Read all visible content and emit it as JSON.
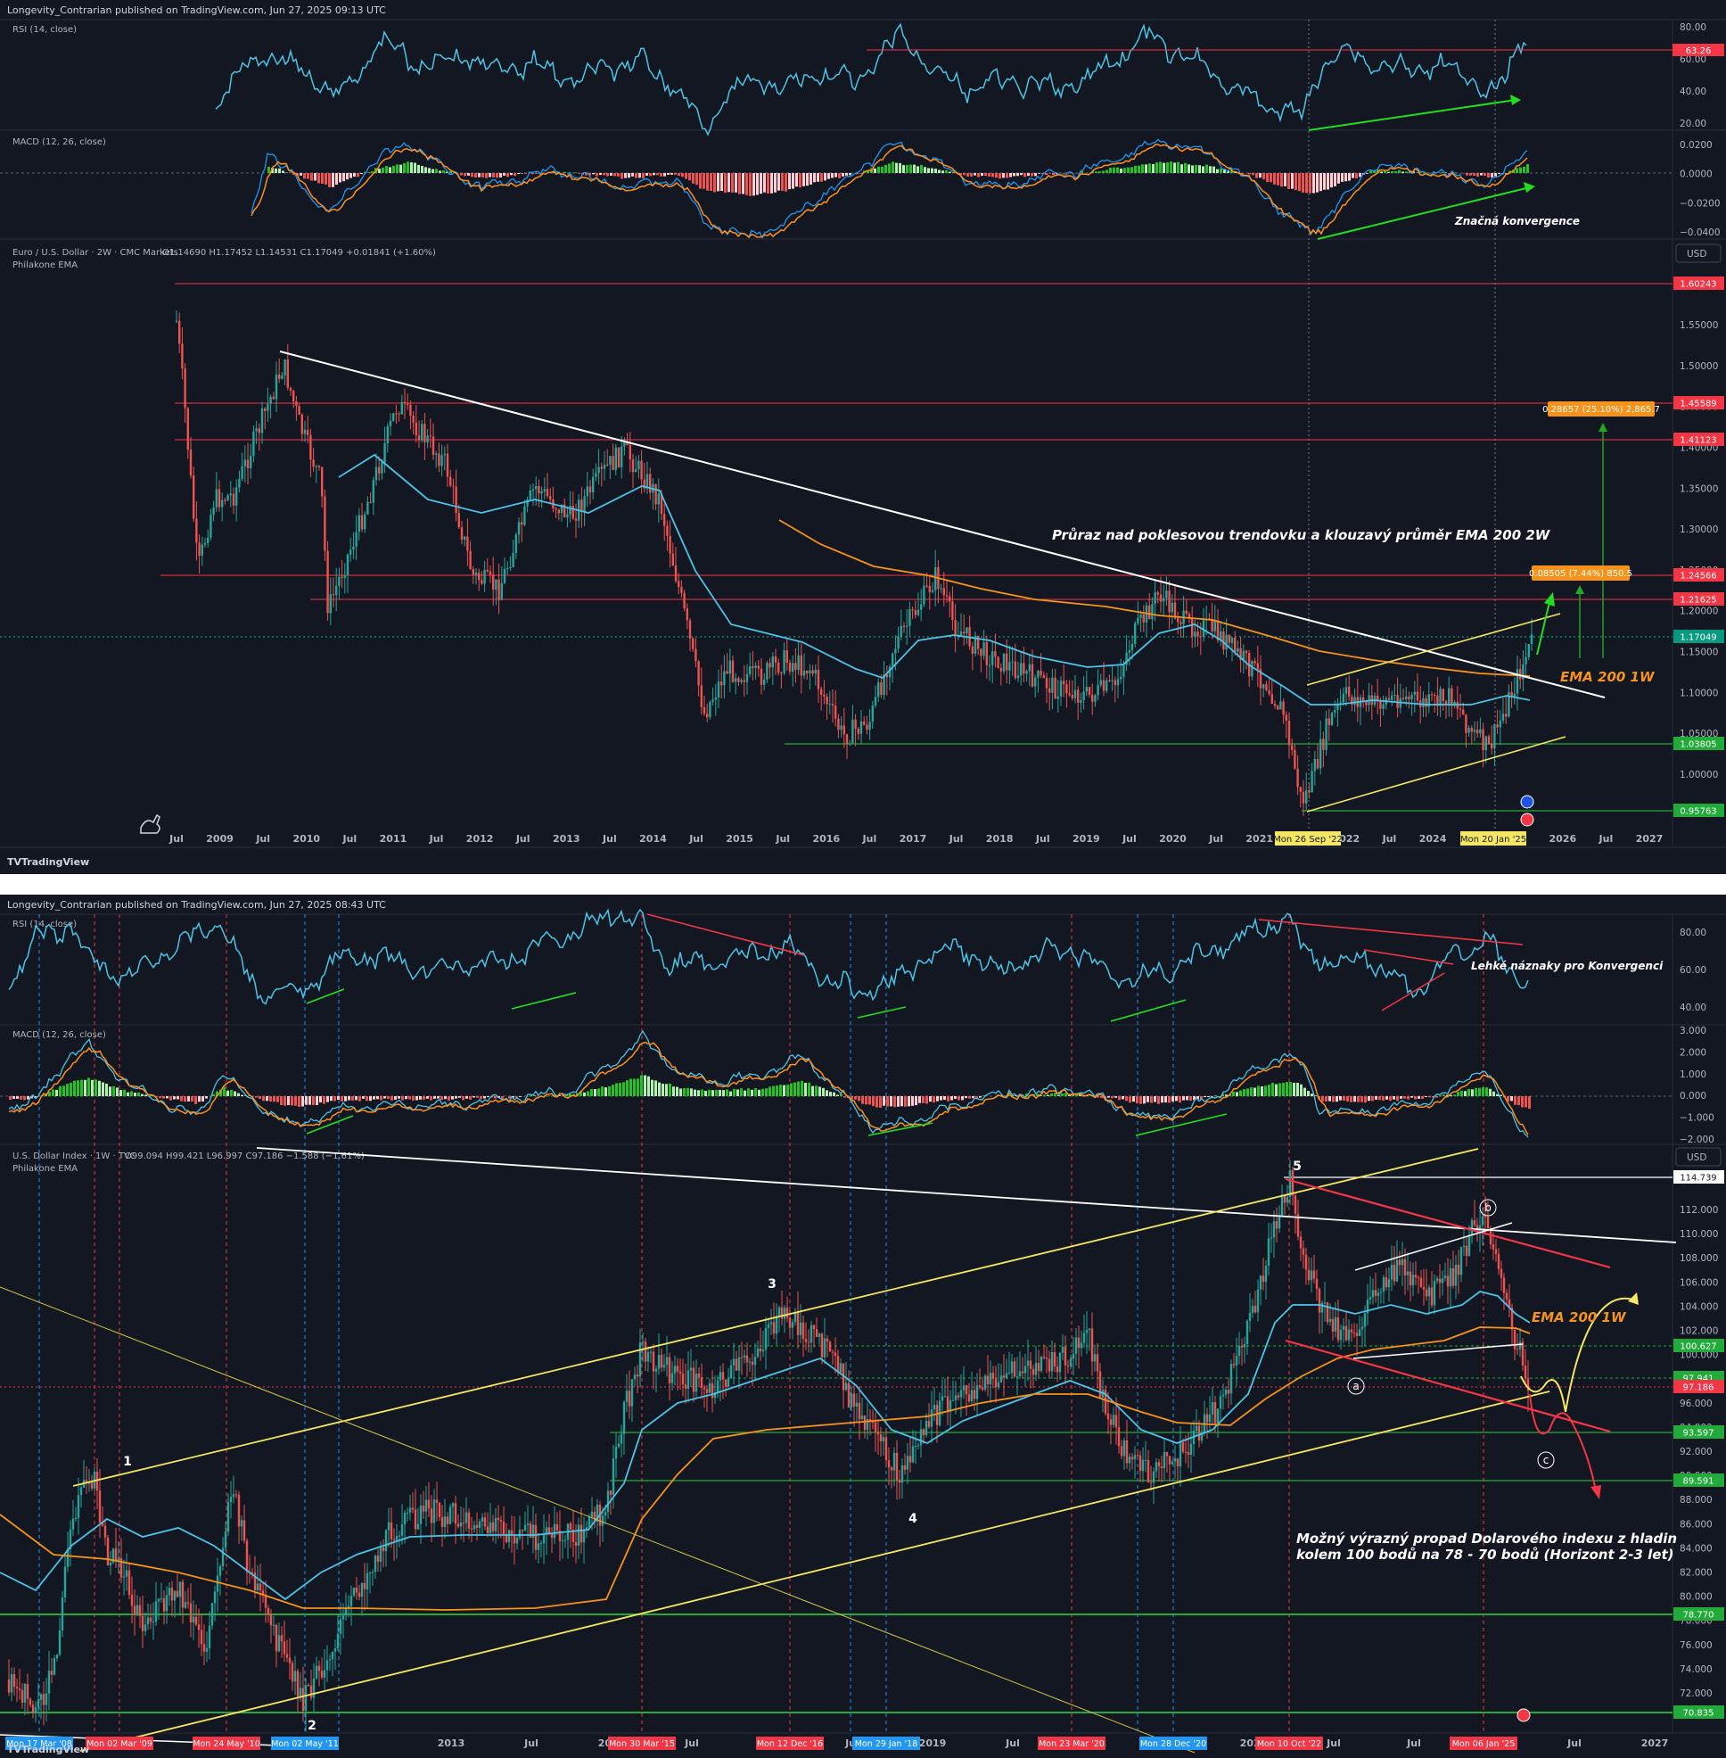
{
  "chart1": {
    "header": "Longevity_Contrarian published on TradingView.com, Jun 27, 2025 09:13 UTC",
    "rsi_title": "RSI (14, close)",
    "rsi_axis": [
      "80.00",
      "60.00",
      "40.00",
      "20.00"
    ],
    "rsi_tag": "63.26",
    "macd_title": "MACD (12, 26, close)",
    "macd_axis": [
      "0.0200",
      "0.0000",
      "−0.0200",
      "−0.0400"
    ],
    "main_title": "Euro / U.S. Dollar · 2W · CMC Markets",
    "ohlc": "O1.14690 H1.17452 L1.14531 C1.17049 +0.01841 (+1.60%)",
    "indicator": "Philakone EMA",
    "currency": "USD",
    "price_axis": [
      "1.55000",
      "1.50000",
      "1.45000",
      "1.40000",
      "1.35000",
      "1.30000",
      "1.25000",
      "1.20000",
      "1.15000",
      "1.10000",
      "1.05000",
      "1.00000"
    ],
    "price_tags": [
      {
        "label": "1.60243",
        "color": "#f23645"
      },
      {
        "label": "1.45589",
        "color": "#f23645"
      },
      {
        "label": "1.41123",
        "color": "#f23645"
      },
      {
        "label": "1.24566",
        "color": "#f23645"
      },
      {
        "label": "1.21625",
        "color": "#f23645"
      },
      {
        "label": "1.17049",
        "color": "#089981"
      },
      {
        "label": "1.03805",
        "color": "#22ab3a"
      },
      {
        "label": "0.95763",
        "color": "#22ab3a"
      }
    ],
    "measure_big": "0.28657 (25.10%) 2,865.7",
    "measure_small": "0.08505 (7.44%) 850.5",
    "annotation_breakout": "Průraz nad poklesovou trendovku a klouzavý průměr EMA 200 2W",
    "annotation_ema": "EMA 200 1W",
    "annotation_konv": "Značná konvergence",
    "x_axis": [
      "Jul",
      "2009",
      "Jul",
      "2010",
      "Jul",
      "2011",
      "Jul",
      "2012",
      "Jul",
      "2013",
      "Jul",
      "2014",
      "Jul",
      "2015",
      "Jul",
      "2016",
      "Jul",
      "2017",
      "Jul",
      "2018",
      "Jul",
      "2019",
      "Jul",
      "2020",
      "Jul",
      "2021",
      "Jul",
      "2022",
      "Jul",
      "2024",
      "Jul",
      "Jul",
      "2026",
      "Jul",
      "2027"
    ],
    "date_tags": [
      "Mon 26 Sep '22",
      "Mon 20 Jan '25"
    ],
    "brand": "TradingView"
  },
  "chart2": {
    "header": "Longevity_Contrarian published on TradingView.com, Jun 27, 2025 08:43 UTC",
    "rsi_title": "RSI (14, close)",
    "rsi_axis": [
      "80.00",
      "60.00",
      "40.00"
    ],
    "rsi_annotation": "Lehké náznaky pro Konvergenci",
    "macd_title": "MACD (12, 26, close)",
    "macd_axis": [
      "3.000",
      "2.000",
      "1.000",
      "0.000",
      "−1.000",
      "−2.000"
    ],
    "main_title": "U.S. Dollar Index · 1W · TVC",
    "ohlc": "O99.094 H99.421 L96.997 C97.186 −1.588 (−1.61%)",
    "indicator": "Philakone EMA",
    "currency": "USD",
    "price_axis": [
      "112.000",
      "110.000",
      "108.000",
      "106.000",
      "104.000",
      "102.000",
      "100.000",
      "98.000",
      "96.000",
      "94.000",
      "92.000",
      "90.000",
      "88.000",
      "86.000",
      "84.000",
      "82.000",
      "80.000",
      "78.000",
      "76.000",
      "74.000",
      "72.000"
    ],
    "price_tags": [
      {
        "label": "114.739",
        "color": "#ffffff",
        "text": "#131722"
      },
      {
        "label": "100.627",
        "color": "#22ab3a",
        "text": "#ffffff"
      },
      {
        "label": "97.941",
        "color": "#22ab3a",
        "text": "#ffffff"
      },
      {
        "label": "97.186",
        "color": "#f23645",
        "text": "#ffffff"
      },
      {
        "label": "93.597",
        "color": "#22ab3a",
        "text": "#ffffff"
      },
      {
        "label": "89.591",
        "color": "#22ab3a",
        "text": "#ffffff"
      },
      {
        "label": "78.770",
        "color": "#22ab3a",
        "text": "#ffffff"
      },
      {
        "label": "70.835",
        "color": "#22ab3a",
        "text": "#ffffff"
      }
    ],
    "waves": [
      "1",
      "2",
      "3",
      "4",
      "5"
    ],
    "subwaves": [
      "a",
      "b",
      "c"
    ],
    "annotation_ema": "EMA 200 1W",
    "annotation_target_1": "Možný výrazný propad Dolarového indexu z hladin",
    "annotation_target_2": "kolem 100 bodů na 78 - 70 bodů (Horizont 2-3 let)",
    "x_axis": [
      "2013",
      "Jul",
      "2014",
      "Jul",
      "2016",
      "Jul",
      "2019",
      "Jul",
      "2022",
      "Jul",
      "2024",
      "Jul",
      "Jul",
      "2026",
      "Jul",
      "2027"
    ],
    "date_tags": [
      {
        "label": "Mon 17 Mar '08",
        "color": "#2196f3"
      },
      {
        "label": "Mon 02 Mar '09",
        "color": "#f23645"
      },
      {
        "label": "Mon 24 May '10",
        "color": "#f23645"
      },
      {
        "label": "Mon 02 May '11",
        "color": "#2196f3"
      },
      {
        "label": "Mon 30 Mar '15",
        "color": "#f23645"
      },
      {
        "label": "Mon 12 Dec '16",
        "color": "#f23645"
      },
      {
        "label": "Mon 29 Jan '18",
        "color": "#2196f3"
      },
      {
        "label": "Mon 23 Mar '20",
        "color": "#f23645"
      },
      {
        "label": "Mon 28 Dec '20",
        "color": "#2196f3"
      },
      {
        "label": "Mon 10 Oct '22",
        "color": "#f23645"
      },
      {
        "label": "Mon 06 Jan '25",
        "color": "#f23645"
      }
    ],
    "brand": "TradingView"
  }
}
